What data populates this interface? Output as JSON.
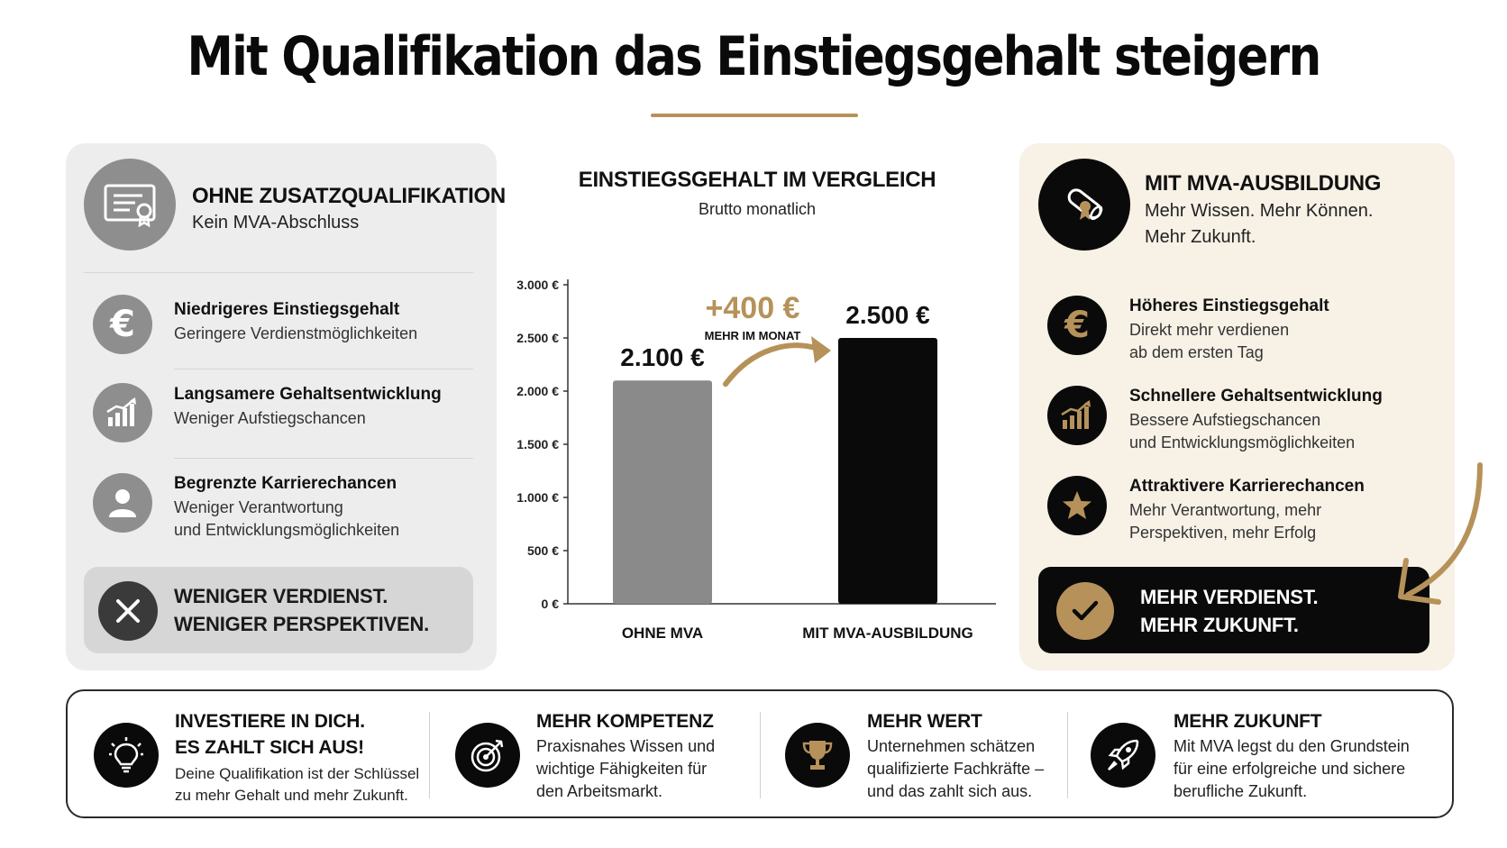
{
  "title": "Mit Qualifikation das Einstiegsgehalt steigern",
  "left_panel": {
    "heading": "OHNE ZUSATZQUALIFIKATION",
    "subheading": "Kein MVA-Abschluss",
    "header_icon": "certificate-icon",
    "items": [
      {
        "icon": "euro-icon",
        "title": "Niedrigeres Einstiegsgehalt",
        "desc": [
          "Geringere Verdienstmöglichkeiten"
        ]
      },
      {
        "icon": "growth-chart-icon",
        "title": "Langsamere Gehaltsentwicklung",
        "desc": [
          "Weniger Aufstiegschancen"
        ]
      },
      {
        "icon": "person-icon",
        "title": "Begrenzte Karrierechancen",
        "desc": [
          "Weniger Verantwortung",
          "und Entwicklungsmöglichkeiten"
        ]
      }
    ],
    "callout": {
      "icon": "close-icon",
      "lines": [
        "WENIGER VERDIENST.",
        "WENIGER PERSPEKTIVEN."
      ]
    }
  },
  "right_panel": {
    "heading": "MIT MVA-AUSBILDUNG",
    "subheading": [
      "Mehr Wissen. Mehr Können.",
      "Mehr Zukunft."
    ],
    "header_icon": "diploma-icon",
    "items": [
      {
        "icon": "euro-icon",
        "title": "Höheres Einstiegsgehalt",
        "desc": [
          "Direkt mehr verdienen",
          "ab dem ersten Tag"
        ]
      },
      {
        "icon": "growth-chart-icon",
        "title": "Schnellere Gehaltsentwicklung",
        "desc": [
          "Bessere Aufstiegschancen",
          "und Entwicklungsmöglichkeiten"
        ]
      },
      {
        "icon": "star-icon",
        "title": "Attraktivere Karrierechancen",
        "desc": [
          "Mehr Verantwortung, mehr",
          "Perspektiven, mehr Erfolg"
        ]
      }
    ],
    "callout": {
      "icon": "checkmark-icon",
      "lines": [
        "MEHR VERDIENST.",
        "MEHR ZUKUNFT."
      ]
    }
  },
  "chart_data": {
    "type": "bar",
    "title": "EINSTIEGSGEHALT IM VERGLEICH",
    "subtitle": "Brutto monatlich",
    "categories": [
      "OHNE MVA",
      "MIT MVA-AUSBILDUNG"
    ],
    "values": [
      2100,
      2500
    ],
    "value_labels": [
      "2.100 €",
      "2.500 €"
    ],
    "bar_colors": [
      "#8a8a8a",
      "#0a0a0a"
    ],
    "ylim": [
      0,
      3000
    ],
    "yticks": [
      0,
      500,
      1000,
      1500,
      2000,
      2500,
      3000
    ],
    "ytick_labels": [
      "0 €",
      "500 €",
      "1.000 €",
      "1.500 €",
      "2.000 €",
      "2.500 €",
      "3.000 €"
    ],
    "grid": false,
    "annotation": {
      "value": "+400 €",
      "label": "MEHR IM MONAT",
      "color": "#b6925a"
    }
  },
  "footer": [
    {
      "icon": "lightbulb-icon",
      "title": [
        "INVESTIERE IN DICH.",
        "ES ZAHLT SICH AUS!"
      ],
      "desc": [
        "Deine Qualifikation ist der Schlüssel",
        "zu mehr Gehalt und mehr Zukunft."
      ]
    },
    {
      "icon": "target-icon",
      "title": [
        "MEHR KOMPETENZ"
      ],
      "desc": [
        "Praxisnahes Wissen und",
        "wichtige Fähigkeiten für",
        "den Arbeitsmarkt."
      ]
    },
    {
      "icon": "trophy-icon",
      "title": [
        "MEHR WERT"
      ],
      "desc": [
        "Unternehmen schätzen",
        "qualifizierte Fachkräfte –",
        "und das zahlt sich aus."
      ]
    },
    {
      "icon": "rocket-icon",
      "title": [
        "MEHR ZUKUNFT"
      ],
      "desc": [
        "Mit MVA legst du den Grundstein",
        "für eine erfolgreiche und sichere",
        "berufliche Zukunft."
      ]
    }
  ],
  "colors": {
    "gold": "#b6925a",
    "dark": "#0a0a0a",
    "grey": "#8a8a8a",
    "left_bg": "#ededed",
    "right_bg": "#f7f1e6"
  }
}
